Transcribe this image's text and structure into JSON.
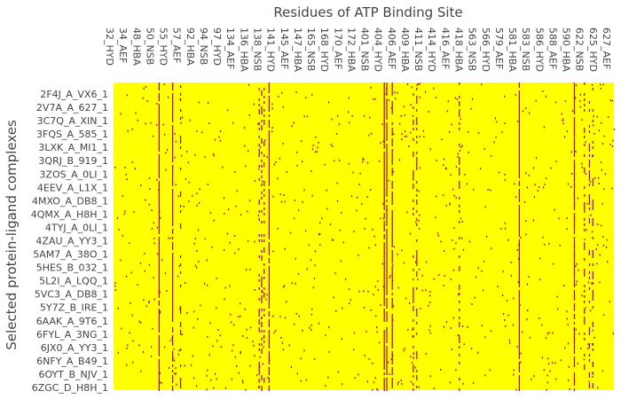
{
  "chart_data": {
    "type": "heatmap",
    "title": "Residues of ATP Binding Site",
    "ylabel": "Selected protein-ligand complexes",
    "xlabel": "",
    "x_tick_labels": [
      "32_HYD",
      "34_AEF",
      "48_HBA",
      "50_NSB",
      "55_HYD",
      "57_AEF",
      "92_HBA",
      "94_NSB",
      "97_HYD",
      "134_AEF",
      "136_HBA",
      "138_NSB",
      "141_HYD",
      "145_AEF",
      "147_HBA",
      "165_NSB",
      "168_HYD",
      "170_AEF",
      "172_HBA",
      "401_NSB",
      "404_HYD",
      "406_AEF",
      "409_HBA",
      "411_NSB",
      "414_HYD",
      "416_AEF",
      "418_HBA",
      "563_NSB",
      "566_HYD",
      "579_AEF",
      "581_HBA",
      "583_NSB",
      "586_HYD",
      "588_AEF",
      "590_HBA",
      "622_NSB",
      "625_HYD",
      "627_AEF"
    ],
    "y_tick_labels": [
      "2F4J_A_VX6_1",
      "2V7A_A_627_1",
      "3C7Q_A_XIN_1",
      "3FQS_A_585_1",
      "3LXK_A_MI1_1",
      "3QRJ_B_919_1",
      "3ZOS_A_0LI_1",
      "4EEV_A_L1X_1",
      "4MXO_A_DB8_1",
      "4QMX_A_H8H_1",
      "4TYJ_A_0LI_1",
      "4ZAU_A_YY3_1",
      "5AM7_A_38O_1",
      "5HES_B_032_1",
      "5L2I_A_LQQ_1",
      "5VC3_A_DB8_1",
      "5Y7Z_B_IRE_1",
      "6AAK_A_9T6_1",
      "6FYL_A_3NG_1",
      "6JX0_A_YY3_1",
      "6NFY_A_B49_1",
      "6OYT_B_NJV_1",
      "6ZGC_D_H8H_1"
    ],
    "value_colors": {
      "absent": "#ffff00",
      "present": "#b00050"
    },
    "legend": "none",
    "grid": false,
    "dense_columns": [
      0.09,
      0.117,
      0.31,
      0.54,
      0.545,
      0.556,
      0.81,
      0.92
    ],
    "medium_columns": [
      0.133,
      0.29,
      0.295,
      0.3,
      0.598,
      0.605,
      0.69,
      0.92,
      0.94,
      0.95,
      0.957
    ]
  }
}
